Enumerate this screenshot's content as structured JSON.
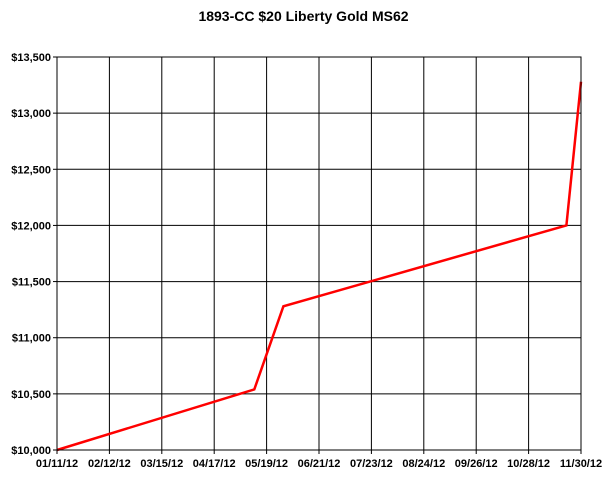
{
  "chart_data": {
    "type": "line",
    "title": "1893-CC $20 Liberty Gold MS62",
    "xlabel": "",
    "ylabel": "",
    "x_tick_labels": [
      "01/11/12",
      "02/12/12",
      "03/15/12",
      "04/17/12",
      "05/19/12",
      "06/21/12",
      "07/23/12",
      "08/24/12",
      "09/26/12",
      "10/28/12",
      "11/30/12"
    ],
    "y_tick_labels": [
      "$10,000",
      "$10,500",
      "$11,000",
      "$11,500",
      "$12,000",
      "$12,500",
      "$13,000",
      "$13,500"
    ],
    "ylim": [
      10000,
      13500
    ],
    "xlim": [
      "2012-01-11",
      "2012-11-30"
    ],
    "grid": true,
    "series": [
      {
        "color": "#ff0000",
        "points": [
          {
            "x": "2012-01-11",
            "y": 10000
          },
          {
            "x": "2012-05-12",
            "y": 10540
          },
          {
            "x": "2012-05-30",
            "y": 11280
          },
          {
            "x": "2012-11-21",
            "y": 12000
          },
          {
            "x": "2012-11-30",
            "y": 13280
          }
        ]
      }
    ]
  }
}
